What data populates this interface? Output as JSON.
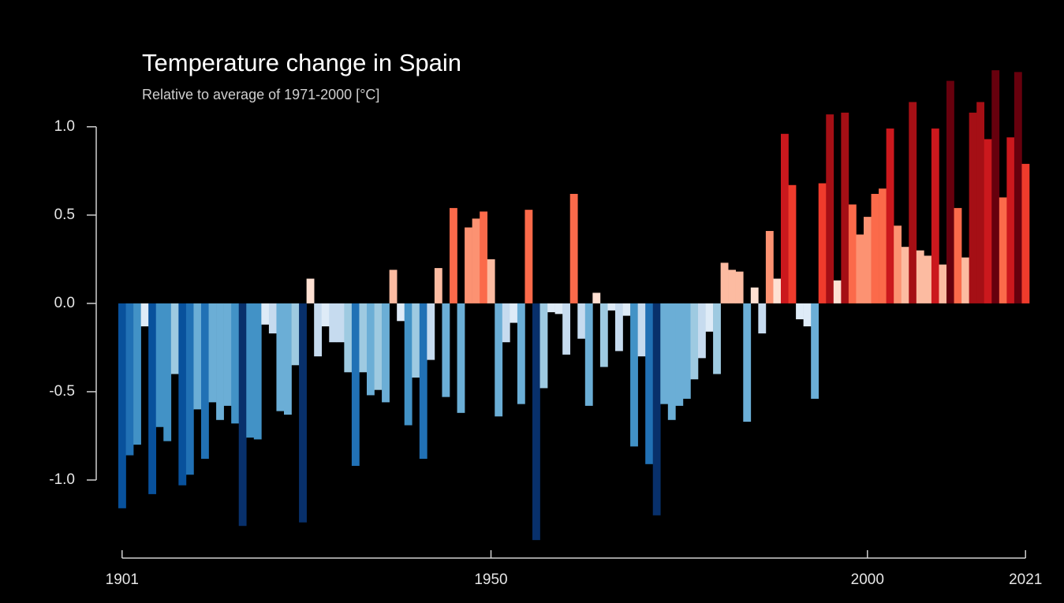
{
  "chart_data": {
    "type": "bar",
    "title": "Temperature change in Spain",
    "subtitle": "Relative to average of 1971-2000  [°C]",
    "x": [
      1901,
      1902,
      1903,
      1904,
      1905,
      1906,
      1907,
      1908,
      1909,
      1910,
      1911,
      1912,
      1913,
      1914,
      1915,
      1916,
      1917,
      1918,
      1919,
      1920,
      1921,
      1922,
      1923,
      1924,
      1925,
      1926,
      1927,
      1928,
      1929,
      1930,
      1931,
      1932,
      1933,
      1934,
      1935,
      1936,
      1937,
      1938,
      1939,
      1940,
      1941,
      1942,
      1943,
      1944,
      1945,
      1946,
      1947,
      1948,
      1949,
      1950,
      1951,
      1952,
      1953,
      1954,
      1955,
      1956,
      1957,
      1958,
      1959,
      1960,
      1961,
      1962,
      1963,
      1964,
      1965,
      1966,
      1967,
      1968,
      1969,
      1970,
      1971,
      1972,
      1973,
      1974,
      1975,
      1976,
      1977,
      1978,
      1979,
      1980,
      1981,
      1982,
      1983,
      1984,
      1985,
      1986,
      1987,
      1988,
      1989,
      1990,
      1991,
      1992,
      1993,
      1994,
      1995,
      1996,
      1997,
      1998,
      1999,
      2000,
      2001,
      2002,
      2003,
      2004,
      2005,
      2006,
      2007,
      2008,
      2009,
      2010,
      2011,
      2012,
      2013,
      2014,
      2015,
      2016,
      2017,
      2018,
      2019,
      2020,
      2021
    ],
    "values": [
      -1.16,
      -0.86,
      -0.8,
      -0.13,
      -1.08,
      -0.7,
      -0.78,
      -0.4,
      -1.03,
      -0.97,
      -0.6,
      -0.88,
      -0.56,
      -0.66,
      -0.58,
      -0.68,
      -1.26,
      -0.76,
      -0.77,
      -0.12,
      -0.17,
      -0.61,
      -0.63,
      -0.35,
      -1.24,
      0.14,
      -0.3,
      -0.13,
      -0.22,
      -0.22,
      -0.39,
      -0.92,
      -0.39,
      -0.52,
      -0.49,
      -0.56,
      0.19,
      -0.1,
      -0.69,
      -0.42,
      -0.88,
      -0.32,
      0.2,
      -0.53,
      0.54,
      -0.62,
      0.43,
      0.48,
      0.52,
      0.25,
      -0.64,
      -0.22,
      -0.11,
      -0.57,
      0.53,
      -1.34,
      -0.48,
      -0.05,
      -0.06,
      -0.29,
      0.62,
      -0.2,
      -0.58,
      0.06,
      -0.36,
      -0.04,
      -0.27,
      -0.07,
      -0.81,
      -0.3,
      -0.91,
      -1.2,
      -0.57,
      -0.66,
      -0.58,
      -0.54,
      -0.43,
      -0.31,
      -0.16,
      -0.4,
      0.23,
      0.19,
      0.18,
      -0.67,
      0.09,
      -0.17,
      0.41,
      0.14,
      0.96,
      0.67,
      -0.09,
      -0.13,
      -0.54,
      0.68,
      1.07,
      0.13,
      1.08,
      0.56,
      0.39,
      0.49,
      0.62,
      0.65,
      0.99,
      0.44,
      0.32,
      1.14,
      0.3,
      0.27,
      0.99,
      0.22,
      1.26,
      0.54,
      0.26,
      1.08,
      1.14,
      0.93,
      1.32,
      0.6,
      0.94,
      1.31,
      0.79
    ],
    "colors": [
      "#08306b",
      "#08519c",
      "#2171b5",
      "#4292c6",
      "#6baed6",
      "#9ecae1",
      "#c6dbef",
      "#deebf7",
      "#fee0d2",
      "#fcbba1",
      "#fc9272",
      "#fb6a4a",
      "#ef3b2c",
      "#cb181d",
      "#a50f15",
      "#67000d"
    ],
    "xlim": [
      1900.5,
      2021.5
    ],
    "xticks": [
      1901,
      1950,
      2000,
      2021
    ],
    "ylim": [
      -1.4,
      1.45
    ],
    "yticks": [
      {
        "value": 1,
        "label": "1.0"
      },
      0.5,
      {
        "value": 0,
        "label": "0.0"
      },
      -0.5,
      {
        "value": -1,
        "label": "-1.0"
      }
    ]
  }
}
